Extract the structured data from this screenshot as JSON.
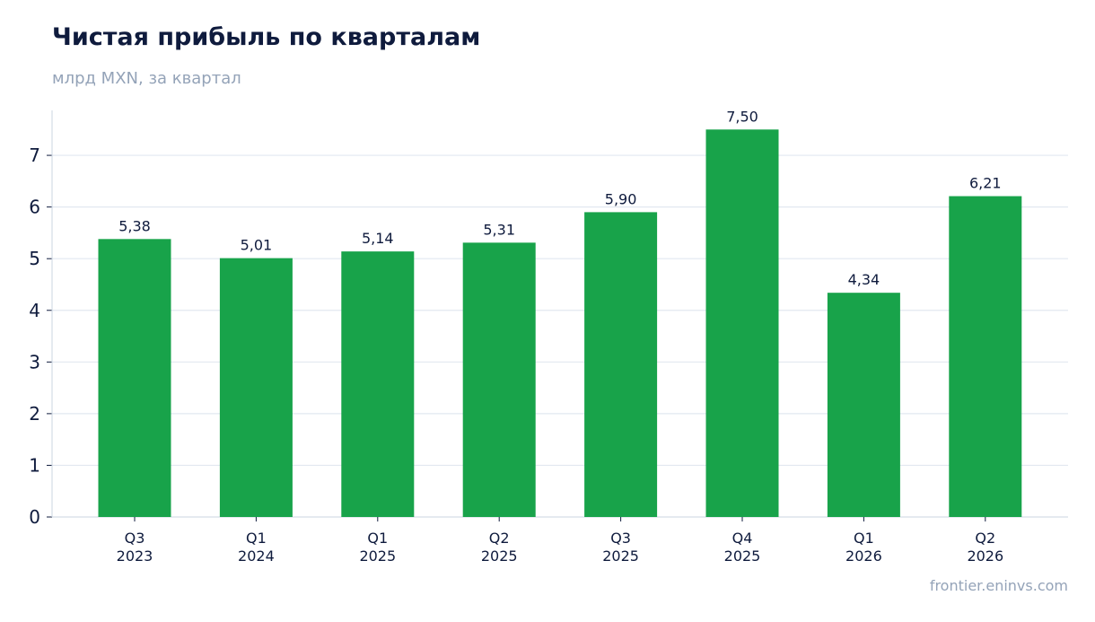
{
  "title": "Чистая прибыль по кварталам",
  "subtitle": "млрд MXN, за квартал",
  "source": "frontier.eninvs.com",
  "colors": {
    "bar": "#18a34a",
    "grid": "#e2e8f0",
    "axis": "#cbd5e1",
    "text": "#0f1b3d",
    "muted": "#94a3b8"
  },
  "chart_data": {
    "type": "bar",
    "categories": [
      [
        "Q3",
        "2023"
      ],
      [
        "Q1",
        "2024"
      ],
      [
        "Q1",
        "2025"
      ],
      [
        "Q2",
        "2025"
      ],
      [
        "Q3",
        "2025"
      ],
      [
        "Q4",
        "2025"
      ],
      [
        "Q1",
        "2026"
      ],
      [
        "Q2",
        "2026"
      ]
    ],
    "values": [
      5.38,
      5.01,
      5.14,
      5.31,
      5.9,
      7.5,
      4.34,
      6.21
    ],
    "data_labels": [
      "5,38",
      "5,01",
      "5,14",
      "5,31",
      "5,90",
      "7,50",
      "4,34",
      "6,21"
    ],
    "title": "Чистая прибыль по кварталам",
    "subtitle": "млрд MXN, за квартал",
    "xlabel": "",
    "ylabel": "",
    "ylim": [
      0,
      7.87
    ],
    "yticks": [
      0,
      1,
      2,
      3,
      4,
      5,
      6,
      7
    ],
    "grid": true,
    "legend": "none"
  }
}
